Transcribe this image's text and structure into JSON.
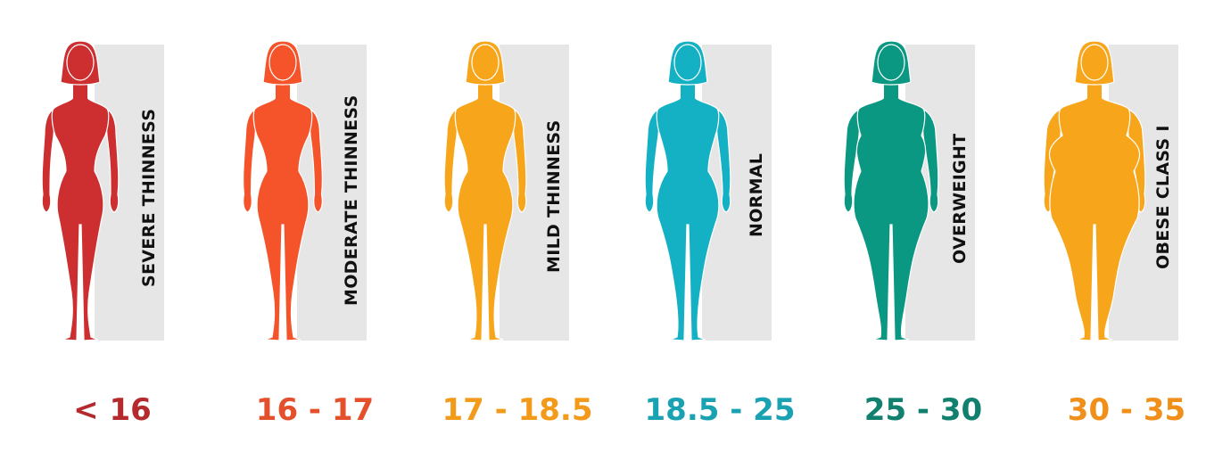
{
  "categories": [
    {
      "label": "SEVERE THINNESS",
      "range": "< 16",
      "color": "#cd2e30",
      "text_color": "#b52a2c",
      "shape": {
        "shoulder": 32,
        "waist": 16,
        "hip": 26,
        "thigh": 13,
        "arm": 6,
        "belly": 0
      }
    },
    {
      "label": "MODERATE THINNESS",
      "range": "16 - 17",
      "color": "#f5532a",
      "text_color": "#e4502c",
      "shape": {
        "shoulder": 33,
        "waist": 18,
        "hip": 29,
        "thigh": 14,
        "arm": 6.5,
        "belly": 0
      }
    },
    {
      "label": "MILD THINNESS",
      "range": "17 - 18.5",
      "color": "#f7a51b",
      "text_color": "#f39a1a",
      "shape": {
        "shoulder": 34,
        "waist": 20,
        "hip": 31,
        "thigh": 15,
        "arm": 7,
        "belly": 0
      }
    },
    {
      "label": "NORMAL",
      "range": "18.5 - 25",
      "color": "#14b1c4",
      "text_color": "#1aa2b3",
      "shape": {
        "shoulder": 35,
        "waist": 23,
        "hip": 35,
        "thigh": 17,
        "arm": 8,
        "belly": 0
      }
    },
    {
      "label": "OVERWEIGHT",
      "range": "25 - 30",
      "color": "#0a9883",
      "text_color": "#11806f",
      "shape": {
        "shoulder": 38,
        "waist": 34,
        "hip": 42,
        "thigh": 21,
        "arm": 10,
        "belly": 4
      }
    },
    {
      "label": "OBESE CLASS I",
      "range": "30 - 35",
      "color": "#f7a51b",
      "text_color": "#f0901a",
      "shape": {
        "shoulder": 40,
        "waist": 44,
        "hip": 50,
        "thigh": 25,
        "arm": 12,
        "belly": 8
      }
    }
  ]
}
